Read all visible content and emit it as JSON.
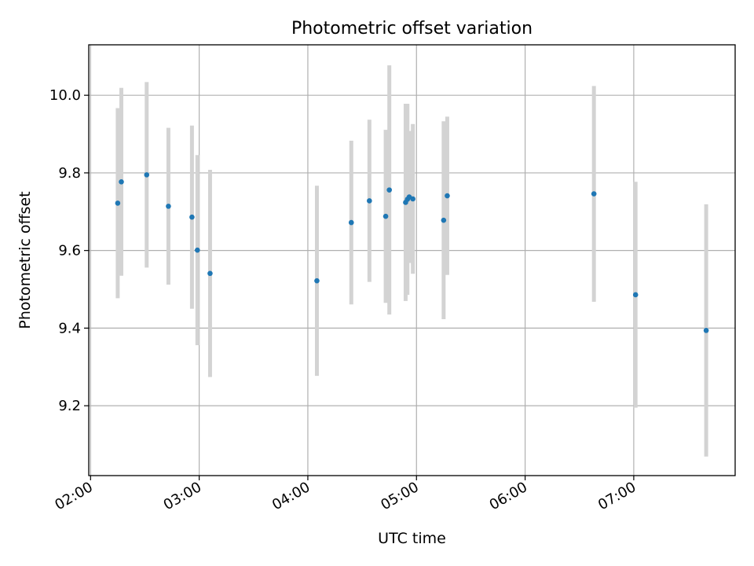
{
  "chart_data": {
    "type": "scatter",
    "title": "Photometric offset variation",
    "xlabel": "UTC time",
    "ylabel": "Photometric offset",
    "x_ticks": [
      "02:00",
      "03:00",
      "04:00",
      "05:00",
      "06:00",
      "07:00"
    ],
    "y_ticks": [
      "9.2",
      "9.4",
      "9.6",
      "9.8",
      "10.0"
    ],
    "xlim": [
      "01:59",
      "07:56"
    ],
    "ylim": [
      9.02,
      10.13
    ],
    "grid": true,
    "marker_color": "#1f77b4",
    "errorbar_color": "#d3d3d3",
    "points": [
      {
        "x": "02:15",
        "y": 9.722,
        "err": 0.245
      },
      {
        "x": "02:17",
        "y": 9.777,
        "err": 0.242
      },
      {
        "x": "02:31",
        "y": 9.795,
        "err": 0.239
      },
      {
        "x": "02:43",
        "y": 9.714,
        "err": 0.202
      },
      {
        "x": "02:56",
        "y": 9.686,
        "err": 0.236
      },
      {
        "x": "02:59",
        "y": 9.601,
        "err": 0.245
      },
      {
        "x": "03:06",
        "y": 9.541,
        "err": 0.267
      },
      {
        "x": "04:05",
        "y": 9.522,
        "err": 0.245
      },
      {
        "x": "04:24",
        "y": 9.672,
        "err": 0.211
      },
      {
        "x": "04:34",
        "y": 9.728,
        "err": 0.209
      },
      {
        "x": "04:43",
        "y": 9.688,
        "err": 0.223
      },
      {
        "x": "04:45",
        "y": 9.756,
        "err": 0.321
      },
      {
        "x": "04:54",
        "y": 9.724,
        "err": 0.254
      },
      {
        "x": "04:55",
        "y": 9.732,
        "err": 0.246
      },
      {
        "x": "04:56",
        "y": 9.738,
        "err": 0.17
      },
      {
        "x": "04:58",
        "y": 9.733,
        "err": 0.193
      },
      {
        "x": "05:15",
        "y": 9.678,
        "err": 0.255
      },
      {
        "x": "05:17",
        "y": 9.741,
        "err": 0.204
      },
      {
        "x": "06:38",
        "y": 9.746,
        "err": 0.278
      },
      {
        "x": "07:01",
        "y": 9.486,
        "err": 0.291
      },
      {
        "x": "07:40",
        "y": 9.394,
        "err": 0.325
      }
    ]
  }
}
